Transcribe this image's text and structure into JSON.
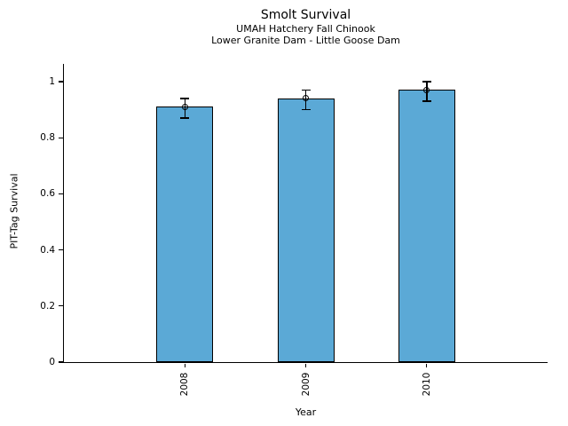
{
  "figure": {
    "title": "Smolt Survival",
    "subtitle1": "UMAH Hatchery Fall Chinook",
    "subtitle2": "Lower Granite Dam - Little Goose Dam",
    "xlabel": "Year",
    "ylabel": "PIT-Tag Survival"
  },
  "chart_data": {
    "type": "bar",
    "title": "Smolt Survival",
    "subtitle_lines": [
      "UMAH Hatchery Fall Chinook",
      "Lower Granite Dam - Little Goose Dam"
    ],
    "xlabel": "Year",
    "ylabel": "PIT-Tag Survival",
    "categories": [
      "2008",
      "2009",
      "2010"
    ],
    "values": [
      0.91,
      0.94,
      0.97
    ],
    "error_low": [
      0.87,
      0.9,
      0.93
    ],
    "error_high": [
      0.94,
      0.97,
      1.0
    ],
    "yticks": [
      0,
      0.2,
      0.4,
      0.6,
      0.8,
      1
    ],
    "ytick_labels": [
      "0",
      "0.2",
      "0.4",
      "0.6",
      "0.8",
      "1"
    ],
    "ylim": [
      0,
      1.06
    ],
    "grid": false,
    "legend": null,
    "marker": "open-circle",
    "bar_color": "#5BA9D6",
    "bar_edge_color": "#000000",
    "error_color": "#000000",
    "background": "#FFFFFF"
  }
}
